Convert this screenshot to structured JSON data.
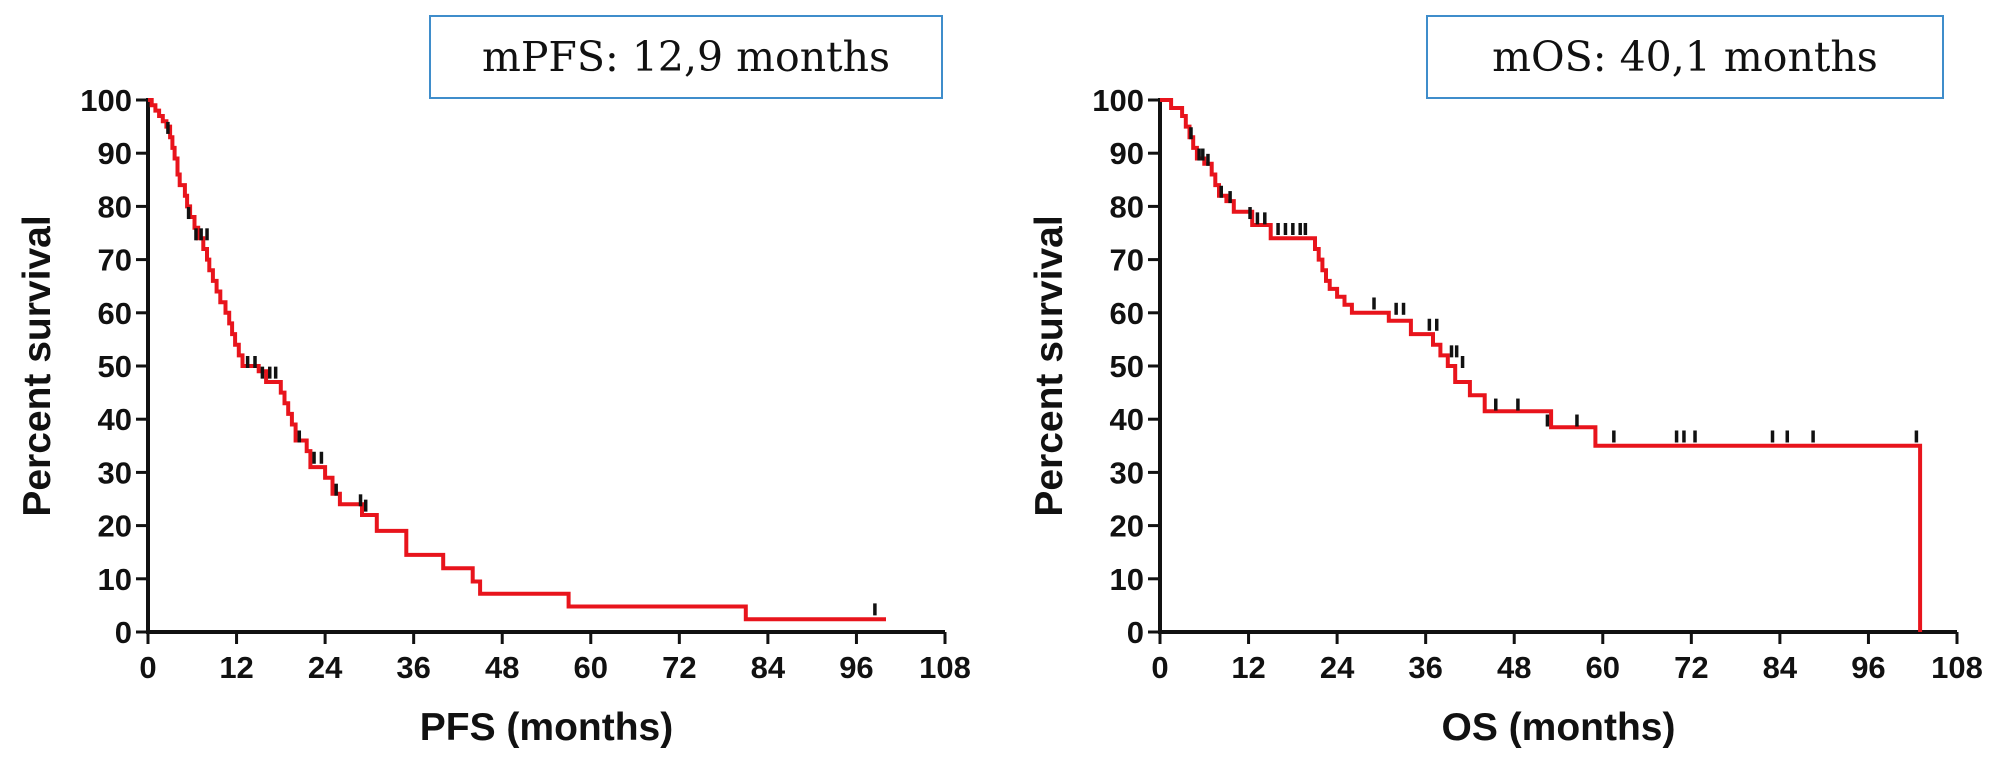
{
  "chart_data": [
    {
      "type": "line",
      "subtype": "kaplan-meier",
      "annotation": "mPFS: 12,9 months",
      "xlabel": "PFS (months)",
      "ylabel": "Percent survival",
      "xlim": [
        0,
        108
      ],
      "ylim": [
        0,
        100
      ],
      "xticks": [
        "0",
        "12",
        "24",
        "36",
        "48",
        "60",
        "72",
        "84",
        "96",
        "108"
      ],
      "yticks": [
        "0",
        "10",
        "20",
        "30",
        "40",
        "50",
        "60",
        "70",
        "80",
        "90",
        "100"
      ],
      "grid": false,
      "line_color": "#e8141c",
      "censor_color": "#111111",
      "series": [
        {
          "steps": [
            [
              0,
              100
            ],
            [
              0.5,
              99
            ],
            [
              1,
              98
            ],
            [
              1.5,
              97
            ],
            [
              2,
              96
            ],
            [
              2.5,
              95
            ],
            [
              3,
              93
            ],
            [
              3.3,
              91
            ],
            [
              3.6,
              89
            ],
            [
              4,
              86
            ],
            [
              4.3,
              84
            ],
            [
              5,
              82
            ],
            [
              5.3,
              80
            ],
            [
              5.7,
              78
            ],
            [
              6.3,
              76
            ],
            [
              6.8,
              74
            ],
            [
              7.5,
              72
            ],
            [
              8,
              70
            ],
            [
              8.3,
              68
            ],
            [
              8.8,
              66
            ],
            [
              9.3,
              64
            ],
            [
              9.8,
              62
            ],
            [
              10.5,
              60
            ],
            [
              11,
              58
            ],
            [
              11.4,
              56
            ],
            [
              11.8,
              54
            ],
            [
              12.3,
              52
            ],
            [
              12.8,
              50
            ],
            [
              15,
              49
            ],
            [
              16,
              47
            ],
            [
              18,
              45
            ],
            [
              18.5,
              43
            ],
            [
              19,
              41
            ],
            [
              19.5,
              39
            ],
            [
              20,
              36
            ],
            [
              21.5,
              34
            ],
            [
              22,
              31
            ],
            [
              24,
              29
            ],
            [
              25,
              26
            ],
            [
              26,
              24
            ],
            [
              29,
              22
            ],
            [
              31,
              19
            ],
            [
              35,
              14.5
            ],
            [
              40,
              12
            ],
            [
              44,
              9.5
            ],
            [
              45,
              7.2
            ],
            [
              57,
              4.8
            ],
            [
              81,
              2.4
            ],
            [
              100,
              2.4
            ]
          ],
          "censored": [
            [
              2.7,
              94
            ],
            [
              5.5,
              78
            ],
            [
              6.5,
              74
            ],
            [
              7.2,
              74
            ],
            [
              8,
              74
            ],
            [
              13.5,
              50
            ],
            [
              14.5,
              50
            ],
            [
              15.5,
              48
            ],
            [
              16.5,
              48
            ],
            [
              17.3,
              48
            ],
            [
              20.5,
              36
            ],
            [
              22.5,
              32
            ],
            [
              23.5,
              32
            ],
            [
              25.5,
              26
            ],
            [
              28.8,
              24
            ],
            [
              29.5,
              23
            ],
            [
              98.5,
              3.5
            ]
          ]
        }
      ]
    },
    {
      "type": "line",
      "subtype": "kaplan-meier",
      "annotation": "mOS: 40,1 months",
      "xlabel": "OS (months)",
      "ylabel": "Percent survival",
      "xlim": [
        0,
        108
      ],
      "ylim": [
        0,
        100
      ],
      "xticks": [
        "0",
        "12",
        "24",
        "36",
        "48",
        "60",
        "72",
        "84",
        "96",
        "108"
      ],
      "yticks": [
        "0",
        "10",
        "20",
        "30",
        "40",
        "50",
        "60",
        "70",
        "80",
        "90",
        "100"
      ],
      "grid": false,
      "line_color": "#e8141c",
      "censor_color": "#111111",
      "series": [
        {
          "steps": [
            [
              0,
              100
            ],
            [
              1.5,
              98.5
            ],
            [
              3,
              97
            ],
            [
              3.5,
              95
            ],
            [
              4,
              93
            ],
            [
              4.5,
              91
            ],
            [
              5,
              89
            ],
            [
              6,
              88
            ],
            [
              7,
              86
            ],
            [
              7.5,
              84
            ],
            [
              8,
              82
            ],
            [
              9,
              81
            ],
            [
              10,
              79
            ],
            [
              12.5,
              76.5
            ],
            [
              15,
              74
            ],
            [
              20.5,
              74
            ],
            [
              21,
              72
            ],
            [
              21.5,
              70
            ],
            [
              22,
              68
            ],
            [
              22.5,
              66
            ],
            [
              23,
              64.5
            ],
            [
              24,
              63
            ],
            [
              25,
              61.5
            ],
            [
              26,
              60
            ],
            [
              31,
              58.5
            ],
            [
              34,
              56
            ],
            [
              37,
              54
            ],
            [
              38,
              52
            ],
            [
              39,
              50
            ],
            [
              40,
              47
            ],
            [
              42,
              44.5
            ],
            [
              44,
              41.5
            ],
            [
              53,
              38.5
            ],
            [
              59,
              35
            ],
            [
              103,
              35
            ],
            [
              103,
              0
            ]
          ],
          "censored": [
            [
              4.2,
              93
            ],
            [
              5.3,
              89
            ],
            [
              5.8,
              89
            ],
            [
              6.5,
              88
            ],
            [
              8.3,
              82
            ],
            [
              9.5,
              81
            ],
            [
              12.2,
              78
            ],
            [
              13.2,
              77
            ],
            [
              14.2,
              77
            ],
            [
              16,
              75
            ],
            [
              17,
              75
            ],
            [
              18,
              75
            ],
            [
              19,
              75
            ],
            [
              19.7,
              75
            ],
            [
              29,
              61
            ],
            [
              32,
              60
            ],
            [
              33,
              60
            ],
            [
              36.5,
              57
            ],
            [
              37.5,
              57
            ],
            [
              39.5,
              52
            ],
            [
              40.2,
              52
            ],
            [
              41,
              50
            ],
            [
              45.5,
              42
            ],
            [
              48.5,
              42
            ],
            [
              52.5,
              39
            ],
            [
              56.5,
              39
            ],
            [
              61.5,
              36
            ],
            [
              70,
              36
            ],
            [
              71,
              36
            ],
            [
              72.5,
              36
            ],
            [
              83,
              36
            ],
            [
              85,
              36
            ],
            [
              88.5,
              36
            ],
            [
              102.5,
              36
            ]
          ]
        }
      ]
    }
  ]
}
